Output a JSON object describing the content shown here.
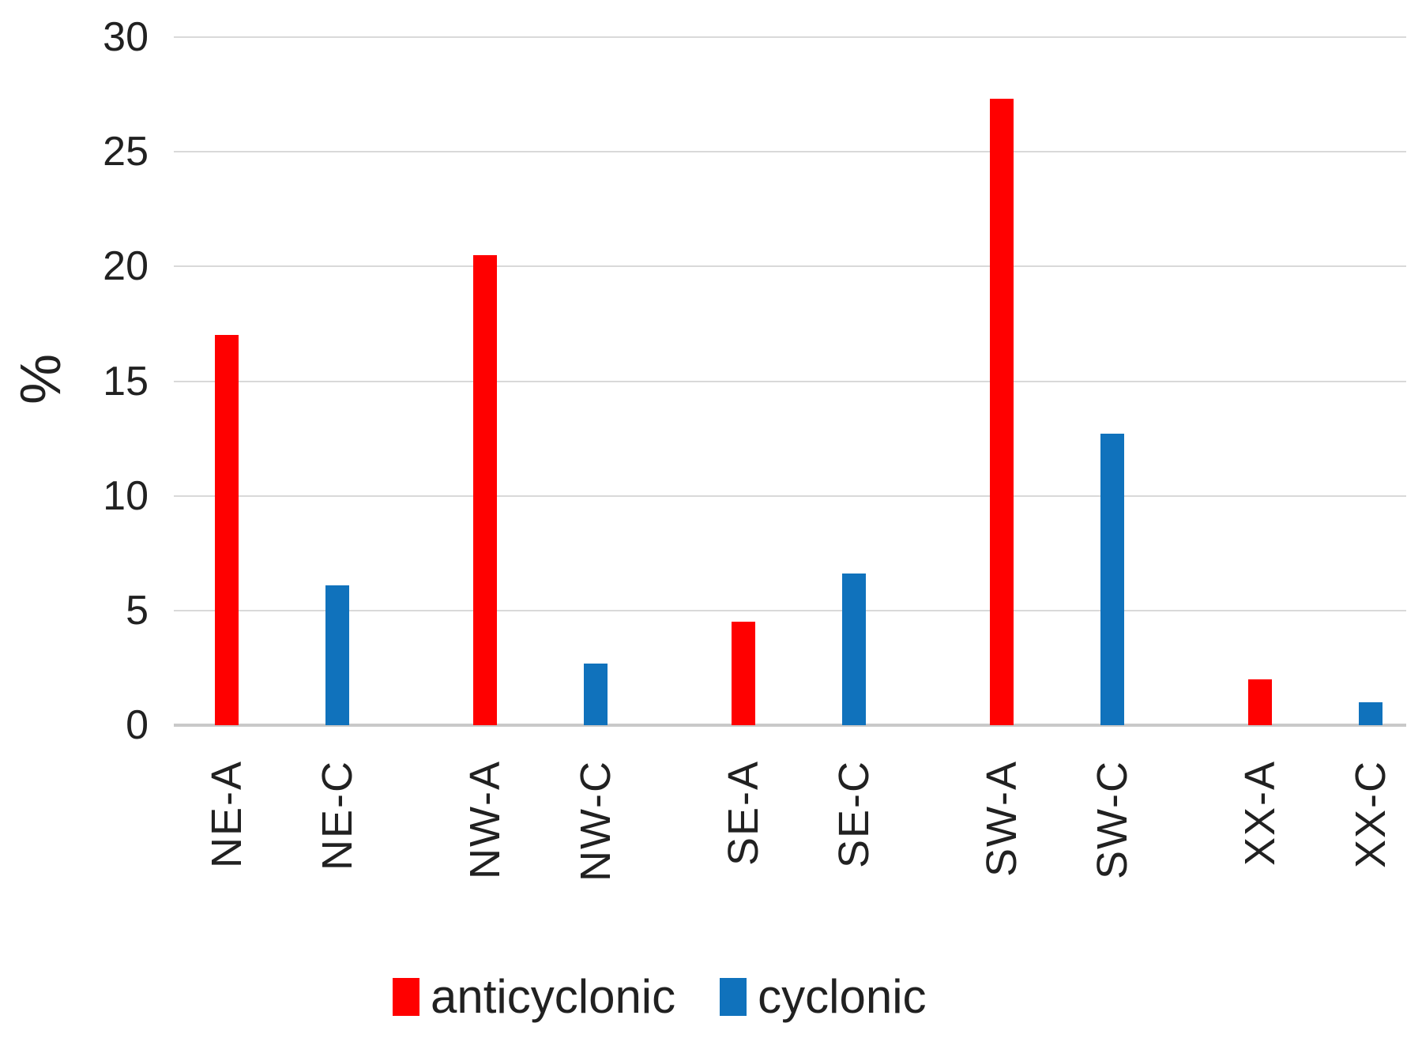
{
  "chart_data": {
    "type": "bar",
    "title": "",
    "xlabel": "",
    "ylabel": "%",
    "ylim": [
      0,
      30
    ],
    "yticks": [
      0,
      5,
      10,
      15,
      20,
      25,
      30
    ],
    "grid": true,
    "legend_position": "bottom",
    "categories": [
      "NE-A",
      "NE-C",
      "NW-A",
      "NW-C",
      "SE-A",
      "SE-C",
      "SW-A",
      "SW-C",
      "XX-A",
      "XX-C"
    ],
    "values": [
      17.0,
      6.1,
      20.5,
      2.7,
      4.5,
      6.6,
      27.3,
      12.7,
      2.0,
      1.0
    ],
    "bar_series": [
      "anticyclonic",
      "cyclonic",
      "anticyclonic",
      "cyclonic",
      "anticyclonic",
      "cyclonic",
      "anticyclonic",
      "cyclonic",
      "anticyclonic",
      "cyclonic"
    ],
    "series": [
      {
        "name": "anticyclonic",
        "color": "#ff0000"
      },
      {
        "name": "cyclonic",
        "color": "#1072bc"
      }
    ],
    "colors": {
      "gridline": "#d9d9d9",
      "axis_line": "#c9c9c9",
      "text": "#212121",
      "background": "#ffffff"
    }
  }
}
